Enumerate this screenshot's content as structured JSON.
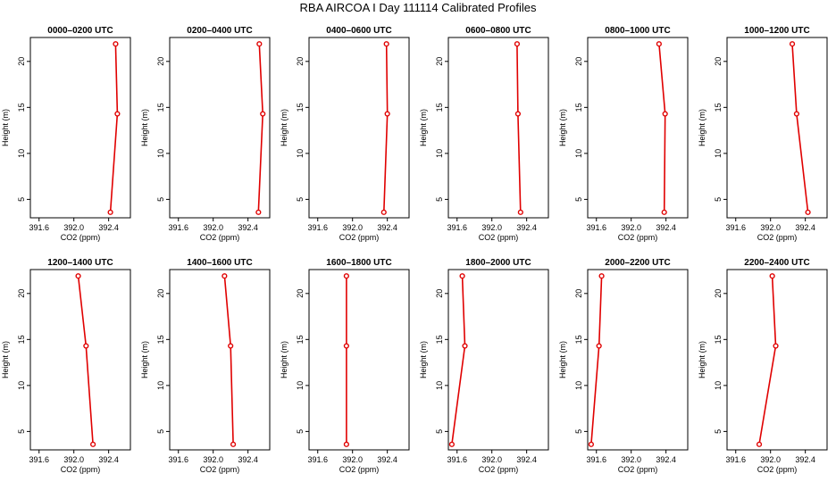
{
  "title": "RBA AIRCOA I  Day 111114  Calibrated Profiles",
  "colors": {
    "line": "#e00000",
    "axis": "#000000"
  },
  "chart_data": {
    "type": "line",
    "xlabel": "CO2 (ppm)",
    "ylabel": "Height (m)",
    "xlim": [
      391.5,
      392.65
    ],
    "ylim": [
      3,
      22.6
    ],
    "x_ticks": [
      391.6,
      392.0,
      392.4
    ],
    "x_tick_labels": [
      "391.6",
      "392.0",
      "392.4"
    ],
    "y_ticks": [
      5,
      10,
      15,
      20
    ],
    "y_tick_labels": [
      "5",
      "10",
      "15",
      "20"
    ],
    "panels": [
      {
        "title": "0000–0200 UTC",
        "points": [
          {
            "x": 392.42,
            "y": 3.6
          },
          {
            "x": 392.5,
            "y": 14.3
          },
          {
            "x": 392.48,
            "y": 21.9
          }
        ]
      },
      {
        "title": "0200–0400 UTC",
        "points": [
          {
            "x": 392.52,
            "y": 3.6
          },
          {
            "x": 392.57,
            "y": 14.3
          },
          {
            "x": 392.53,
            "y": 21.9
          }
        ]
      },
      {
        "title": "0400–0600 UTC",
        "points": [
          {
            "x": 392.36,
            "y": 3.6
          },
          {
            "x": 392.4,
            "y": 14.3
          },
          {
            "x": 392.39,
            "y": 21.9
          }
        ]
      },
      {
        "title": "0600–0800 UTC",
        "points": [
          {
            "x": 392.33,
            "y": 3.6
          },
          {
            "x": 392.3,
            "y": 14.3
          },
          {
            "x": 392.29,
            "y": 21.9
          }
        ]
      },
      {
        "title": "0800–1000 UTC",
        "points": [
          {
            "x": 392.38,
            "y": 3.6
          },
          {
            "x": 392.39,
            "y": 14.3
          },
          {
            "x": 392.32,
            "y": 21.9
          }
        ]
      },
      {
        "title": "1000–1200 UTC",
        "points": [
          {
            "x": 392.43,
            "y": 3.6
          },
          {
            "x": 392.3,
            "y": 14.3
          },
          {
            "x": 392.25,
            "y": 21.9
          }
        ]
      },
      {
        "title": "1200–1400 UTC",
        "points": [
          {
            "x": 392.22,
            "y": 3.6
          },
          {
            "x": 392.14,
            "y": 14.3
          },
          {
            "x": 392.05,
            "y": 21.9
          }
        ]
      },
      {
        "title": "1400–1600 UTC",
        "points": [
          {
            "x": 392.23,
            "y": 3.6
          },
          {
            "x": 392.2,
            "y": 14.3
          },
          {
            "x": 392.13,
            "y": 21.9
          }
        ]
      },
      {
        "title": "1600–1800 UTC",
        "points": [
          {
            "x": 391.93,
            "y": 3.6
          },
          {
            "x": 391.93,
            "y": 14.3
          },
          {
            "x": 391.93,
            "y": 21.9
          }
        ]
      },
      {
        "title": "1800–2000 UTC",
        "points": [
          {
            "x": 391.54,
            "y": 3.6
          },
          {
            "x": 391.69,
            "y": 14.3
          },
          {
            "x": 391.66,
            "y": 21.9
          }
        ]
      },
      {
        "title": "2000–2200 UTC",
        "points": [
          {
            "x": 391.54,
            "y": 3.6
          },
          {
            "x": 391.63,
            "y": 14.3
          },
          {
            "x": 391.66,
            "y": 21.9
          }
        ]
      },
      {
        "title": "2200–2400 UTC",
        "points": [
          {
            "x": 391.87,
            "y": 3.6
          },
          {
            "x": 392.06,
            "y": 14.3
          },
          {
            "x": 392.02,
            "y": 21.9
          }
        ]
      }
    ]
  }
}
